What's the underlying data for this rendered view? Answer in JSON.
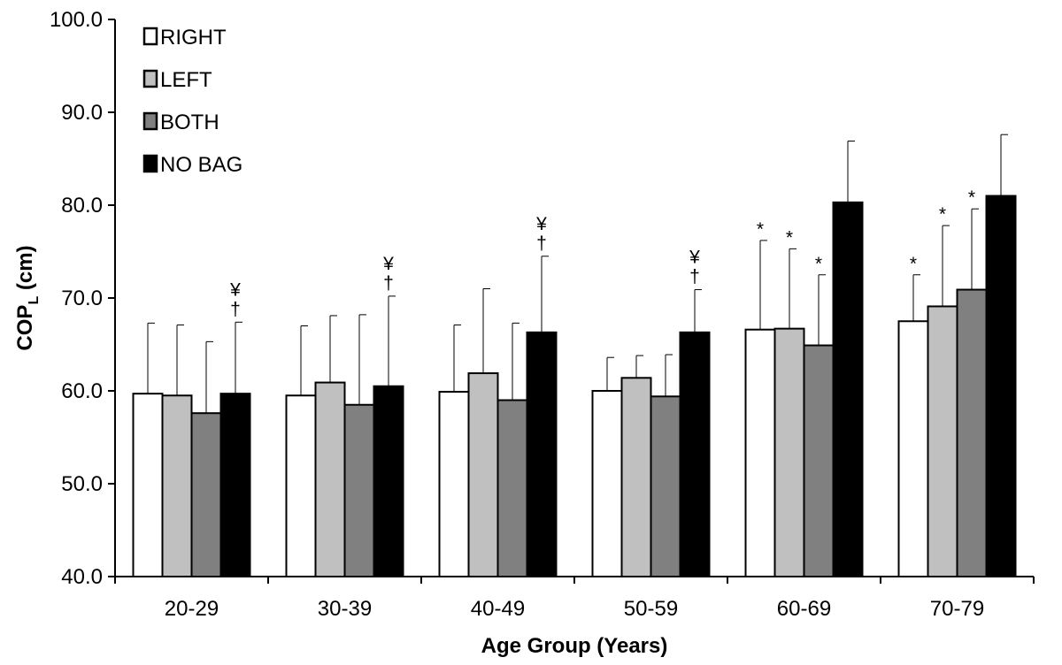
{
  "chart_data": {
    "type": "bar",
    "title": "",
    "xlabel": "Age Group (Years)",
    "ylabel_main": "COP",
    "ylabel_sub": "L",
    "ylabel_unit": " (cm)",
    "ylim": [
      40,
      100
    ],
    "yticks": [
      "40.0",
      "50.0",
      "60.0",
      "70.0",
      "80.0",
      "90.0",
      "100.0"
    ],
    "grid": false,
    "legend_position": "top-left",
    "categories": [
      "20-29",
      "30-39",
      "40-49",
      "50-59",
      "60-69",
      "70-79"
    ],
    "series": [
      {
        "name": "RIGHT",
        "color": "#ffffff",
        "values": [
          59.7,
          59.5,
          59.9,
          60.0,
          66.6,
          67.5
        ],
        "error": [
          7.6,
          7.5,
          7.2,
          3.6,
          9.6,
          5.0
        ],
        "annotations": [
          "",
          "",
          "",
          "",
          "*",
          "*"
        ]
      },
      {
        "name": "LEFT",
        "color": "#c0c0c0",
        "values": [
          59.5,
          60.9,
          61.9,
          61.4,
          66.7,
          69.1
        ],
        "error": [
          7.6,
          7.2,
          9.1,
          2.4,
          8.6,
          8.7
        ],
        "annotations": [
          "",
          "",
          "",
          "",
          "*",
          "*"
        ]
      },
      {
        "name": "BOTH",
        "color": "#808080",
        "values": [
          57.6,
          58.5,
          59.0,
          59.4,
          64.9,
          70.9
        ],
        "error": [
          7.7,
          9.7,
          8.3,
          4.5,
          7.6,
          8.7
        ],
        "annotations": [
          "",
          "",
          "",
          "",
          "*",
          "*"
        ]
      },
      {
        "name": "NO BAG",
        "color": "#000000",
        "values": [
          59.7,
          60.5,
          66.3,
          66.3,
          80.3,
          81.0
        ],
        "error": [
          7.7,
          9.7,
          8.2,
          4.6,
          6.6,
          6.6
        ],
        "annotations": [
          [
            "¥",
            "†"
          ],
          [
            "¥",
            "†"
          ],
          [
            "¥",
            "†"
          ],
          [
            "¥",
            "†"
          ],
          [],
          []
        ]
      }
    ]
  }
}
